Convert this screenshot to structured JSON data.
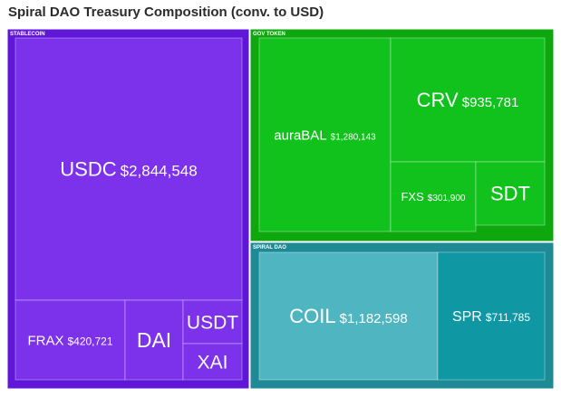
{
  "title": "Spiral DAO Treasury Composition (conv. to USD)",
  "chart_data": {
    "type": "treemap",
    "title": "Spiral DAO Treasury Composition (conv. to USD)",
    "groups": [
      {
        "name": "STABLECOIN",
        "color": "#5f16d9",
        "children": [
          {
            "name": "USDC",
            "value": 2844548,
            "label": "$2,844,548",
            "color": "#7c32ea"
          },
          {
            "name": "FRAX",
            "value": 420721,
            "label": "$420,721",
            "color": "#7c32ea"
          },
          {
            "name": "DAI",
            "value": null,
            "label": "",
            "color": "#7c32ea"
          },
          {
            "name": "USDT",
            "value": null,
            "label": "",
            "color": "#7c32ea"
          },
          {
            "name": "XAI",
            "value": null,
            "label": "",
            "color": "#7c32ea"
          }
        ]
      },
      {
        "name": "GOV TOKEN",
        "color": "#0ea80e",
        "children": [
          {
            "name": "auraBAL",
            "value": 1280143,
            "label": "$1,280,143",
            "color": "#10c21b"
          },
          {
            "name": "CRV",
            "value": 935781,
            "label": "$935,781",
            "color": "#10c21b"
          },
          {
            "name": "FXS",
            "value": 301900,
            "label": "$301,900",
            "color": "#10c21b"
          },
          {
            "name": "SDT",
            "value": null,
            "label": "",
            "color": "#10c21b"
          }
        ]
      },
      {
        "name": "SPIRAL DAO",
        "color": "#1e8a96",
        "children": [
          {
            "name": "COIL",
            "value": 1182598,
            "label": "$1,182,598",
            "color": "#4fb5c1"
          },
          {
            "name": "SPR",
            "value": 711785,
            "label": "$711,785",
            "color": "#0f97a3"
          }
        ]
      }
    ]
  }
}
